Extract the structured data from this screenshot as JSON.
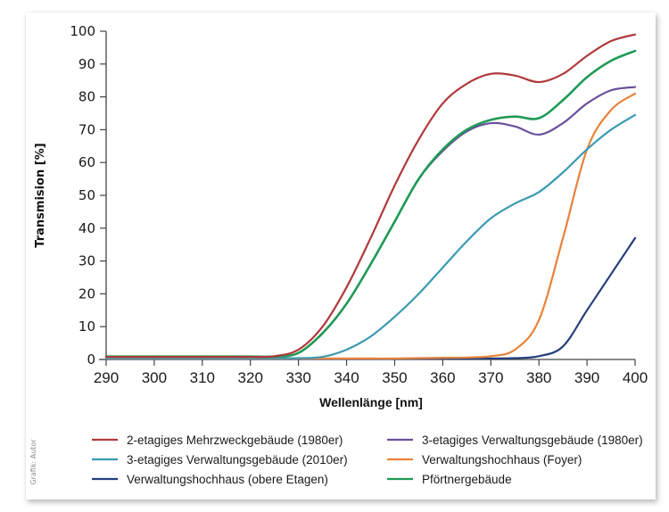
{
  "chart_data": {
    "type": "line",
    "title": "",
    "xlabel": "Wellenlänge [nm]",
    "ylabel": "Transmision [%]",
    "xlim": [
      290,
      400
    ],
    "ylim": [
      0,
      100
    ],
    "xticks": [
      290,
      300,
      310,
      320,
      330,
      340,
      350,
      360,
      370,
      380,
      390,
      400
    ],
    "yticks": [
      0,
      10,
      20,
      30,
      40,
      50,
      60,
      70,
      80,
      90,
      100
    ],
    "grid": false,
    "legend_position": "bottom",
    "credit": "Grafik: Autor",
    "x": [
      290,
      295,
      300,
      305,
      310,
      315,
      320,
      325,
      330,
      335,
      340,
      345,
      350,
      355,
      360,
      365,
      370,
      375,
      380,
      385,
      390,
      395,
      400
    ],
    "series": [
      {
        "name": "2-etagiges Mehrzweckgebäude (1980er)",
        "color": "#b0393b",
        "values": [
          0.8,
          0.8,
          0.8,
          0.8,
          0.8,
          0.8,
          0.8,
          1.0,
          3.0,
          10.0,
          22.0,
          37.0,
          53.0,
          67.0,
          78.0,
          84.0,
          87.0,
          86.5,
          84.5,
          87.0,
          92.5,
          97.0,
          99.0
        ]
      },
      {
        "name": "3-etagiges Verwaltungsgebäude (1980er)",
        "color": "#6a4f9c",
        "values": [
          0.8,
          0.8,
          0.8,
          0.8,
          0.8,
          0.8,
          0.8,
          0.8,
          2.0,
          8.0,
          17.0,
          29.0,
          42.0,
          55.0,
          63.5,
          69.5,
          72.0,
          71.0,
          68.5,
          72.0,
          78.0,
          82.0,
          83.0
        ]
      },
      {
        "name": "3-etagiges Verwaltungsgebäude (2010er)",
        "color": "#3a9ab2",
        "values": [
          0.4,
          0.4,
          0.4,
          0.4,
          0.4,
          0.4,
          0.4,
          0.4,
          0.4,
          0.8,
          3.0,
          7.0,
          13.0,
          20.0,
          28.0,
          36.0,
          43.0,
          47.5,
          51.0,
          57.0,
          64.0,
          70.0,
          74.5
        ]
      },
      {
        "name": "Verwaltungshochhaus (Foyer)",
        "color": "#e8823a",
        "values": [
          0.3,
          0.3,
          0.3,
          0.3,
          0.3,
          0.3,
          0.3,
          0.3,
          0.3,
          0.3,
          0.3,
          0.3,
          0.3,
          0.4,
          0.5,
          0.6,
          1.0,
          3.0,
          12.0,
          37.0,
          64.0,
          76.0,
          81.0
        ]
      },
      {
        "name": "Verwaltungshochhaus (obere Etagen)",
        "color": "#243f7a",
        "values": [
          0.2,
          0.2,
          0.2,
          0.2,
          0.2,
          0.2,
          0.2,
          0.2,
          0.2,
          0.2,
          0.2,
          0.2,
          0.2,
          0.2,
          0.2,
          0.2,
          0.3,
          0.4,
          1.0,
          4.0,
          15.0,
          26.0,
          37.0
        ]
      },
      {
        "name": "Pförtnergebäude",
        "color": "#1f9a55",
        "values": [
          0.9,
          0.9,
          0.9,
          0.9,
          0.9,
          0.9,
          0.9,
          0.9,
          2.0,
          8.0,
          17.0,
          29.0,
          42.0,
          55.0,
          64.0,
          70.0,
          73.0,
          74.0,
          73.5,
          79.0,
          86.0,
          91.0,
          94.0
        ]
      }
    ],
    "legend_order": [
      0,
      1,
      2,
      3,
      4,
      5
    ]
  }
}
